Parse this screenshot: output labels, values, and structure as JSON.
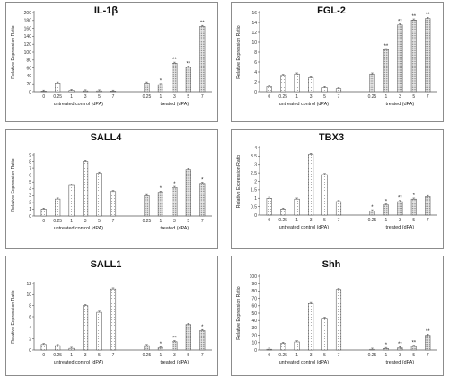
{
  "chart_data": [
    {
      "type": "bar",
      "title": "IL-1β",
      "ylabel": "Relative Expression Ratio",
      "ylim": [
        0,
        200
      ],
      "yticks": [
        0,
        20,
        40,
        60,
        80,
        100,
        120,
        140,
        160,
        180,
        200
      ],
      "groups": [
        {
          "label": "untreated control (dPA)",
          "categories": [
            "0",
            "0.25",
            "1",
            "3",
            "5",
            "7"
          ],
          "values": [
            1,
            22,
            3,
            2,
            2,
            1
          ],
          "marks": [
            "",
            "",
            "",
            "",
            "",
            ""
          ]
        },
        {
          "label": "treated (dPA)",
          "categories": [
            "0.25",
            "1",
            "3",
            "5",
            "7"
          ],
          "values": [
            22,
            18,
            72,
            62,
            165
          ],
          "marks": [
            "",
            "*",
            "**",
            "**",
            "**"
          ]
        }
      ]
    },
    {
      "type": "bar",
      "title": "FGL-2",
      "ylabel": "Relative Expression Ratio",
      "ylim": [
        0,
        16
      ],
      "yticks": [
        0,
        2,
        4,
        6,
        8,
        10,
        12,
        14,
        16
      ],
      "groups": [
        {
          "label": "untreated control (dPA)",
          "categories": [
            "0",
            "0.25",
            "1",
            "3",
            "5",
            "7"
          ],
          "values": [
            1,
            3.3,
            3.6,
            2.8,
            0.8,
            0.6
          ],
          "marks": [
            "",
            "",
            "",
            "",
            "",
            ""
          ]
        },
        {
          "label": "treated (dPA)",
          "categories": [
            "0.25",
            "1",
            "3",
            "5",
            "7"
          ],
          "values": [
            3.6,
            8.5,
            13.5,
            14.5,
            14.8
          ],
          "marks": [
            "",
            "**",
            "**",
            "**",
            "**"
          ]
        }
      ]
    },
    {
      "type": "bar",
      "title": "SALL4",
      "ylabel": "Relative Expression Ratio",
      "ylim": [
        0,
        9
      ],
      "yticks": [
        0,
        1,
        2,
        3,
        4,
        5,
        6,
        7,
        8,
        9
      ],
      "groups": [
        {
          "label": "untreated control (dPA)",
          "categories": [
            "0",
            "0.25",
            "1",
            "3",
            "5",
            "7"
          ],
          "values": [
            1,
            2.5,
            4.5,
            8,
            6.3,
            3.6
          ],
          "marks": [
            "",
            "",
            "",
            "",
            "",
            ""
          ]
        },
        {
          "label": "treated (dPA)",
          "categories": [
            "0.25",
            "1",
            "3",
            "5",
            "7"
          ],
          "values": [
            3,
            3.5,
            4.2,
            6.8,
            4.8
          ],
          "marks": [
            "",
            "*",
            "*",
            "",
            "*"
          ]
        }
      ]
    },
    {
      "type": "bar",
      "title": "TBX3",
      "ylabel": "Relative Expression Ratio",
      "ylim": [
        0,
        4
      ],
      "yticks": [
        0,
        0.5,
        1,
        1.5,
        2,
        2.5,
        3,
        3.5,
        4
      ],
      "groups": [
        {
          "label": "untreated control (dPA)",
          "categories": [
            "0",
            "0.25",
            "1",
            "3",
            "5",
            "7"
          ],
          "values": [
            1,
            0.35,
            0.95,
            3.6,
            2.4,
            0.8
          ],
          "marks": [
            "",
            "",
            "",
            "",
            "",
            ""
          ]
        },
        {
          "label": "treated (dPA)",
          "categories": [
            "0.25",
            "1",
            "3",
            "5",
            "7"
          ],
          "values": [
            0.25,
            0.6,
            0.8,
            0.95,
            1.1
          ],
          "marks": [
            "*",
            "*",
            "**",
            "*",
            ""
          ]
        }
      ]
    },
    {
      "type": "bar",
      "title": "SALL1",
      "ylabel": "Relative Expression Ratio",
      "ylim": [
        0,
        12
      ],
      "yticks": [
        0,
        2,
        4,
        6,
        8,
        10,
        12
      ],
      "groups": [
        {
          "label": "untreated control (dPA)",
          "categories": [
            "0",
            "0.25",
            "1",
            "3",
            "5",
            "7"
          ],
          "values": [
            1,
            0.8,
            0.3,
            8,
            6.8,
            11
          ],
          "marks": [
            "",
            "",
            "",
            "",
            "",
            ""
          ]
        },
        {
          "label": "treated (dPA)",
          "categories": [
            "0.25",
            "1",
            "3",
            "5",
            "7"
          ],
          "values": [
            0.8,
            0.4,
            1.5,
            4.6,
            3.5
          ],
          "marks": [
            "",
            "*",
            "**",
            "",
            "*"
          ]
        }
      ]
    },
    {
      "type": "bar",
      "title": "Shh",
      "ylabel": "Relative Expression Ratio",
      "ylim": [
        0,
        100
      ],
      "yticks": [
        0,
        10,
        20,
        30,
        40,
        50,
        60,
        70,
        80,
        90,
        100
      ],
      "groups": [
        {
          "label": "untreated control (dPA)",
          "categories": [
            "0",
            "0.25",
            "1",
            "3",
            "5",
            "7"
          ],
          "values": [
            1,
            9,
            11,
            63,
            43,
            82
          ],
          "marks": [
            "",
            "",
            "",
            "",
            "",
            ""
          ]
        },
        {
          "label": "treated (dPA)",
          "categories": [
            "0.25",
            "1",
            "3",
            "5",
            "7"
          ],
          "values": [
            1,
            2,
            3,
            5,
            20
          ],
          "marks": [
            "",
            "*",
            "**",
            "**",
            "**"
          ]
        }
      ]
    }
  ]
}
